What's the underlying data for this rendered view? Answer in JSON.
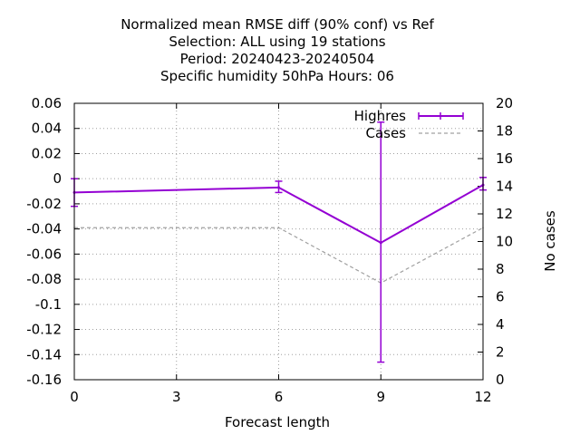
{
  "title": {
    "line1": "Normalized mean RMSE diff (90% conf) vs Ref",
    "line2": "Selection: ALL using    19 stations",
    "line3": "Period: 20240423-20240504",
    "line4": "Specific humidity 50hPa   Hours:  06"
  },
  "chart_data": {
    "type": "line",
    "xlabel": "Forecast length",
    "ylabel": "",
    "y2label": "No cases",
    "xlim": [
      0,
      12
    ],
    "ylim": [
      -0.16,
      0.06
    ],
    "y2lim": [
      0,
      20
    ],
    "xticks": [
      "0",
      "3",
      "6",
      "9",
      "12"
    ],
    "xtick_values": [
      0,
      3,
      6,
      9,
      12
    ],
    "yticks": [
      "0.06",
      "0.04",
      "0.02",
      "0",
      "-0.02",
      "-0.04",
      "-0.06",
      "-0.08",
      "-0.1",
      "-0.12",
      "-0.14",
      "-0.16"
    ],
    "ytick_values": [
      0.06,
      0.04,
      0.02,
      0,
      -0.02,
      -0.04,
      -0.06,
      -0.08,
      -0.1,
      -0.12,
      -0.14,
      -0.16
    ],
    "y2ticks": [
      "20",
      "18",
      "16",
      "14",
      "12",
      "10",
      "8",
      "6",
      "4",
      "2",
      "0"
    ],
    "y2tick_values": [
      20,
      18,
      16,
      14,
      12,
      10,
      8,
      6,
      4,
      2,
      0
    ],
    "grid": true,
    "legend_position": "top-right",
    "series": [
      {
        "name": "Highres",
        "axis": "y",
        "color": "#9400d3",
        "style": "solid-errorbars",
        "x": [
          0,
          6,
          9,
          12
        ],
        "y": [
          -0.011,
          -0.007,
          -0.051,
          -0.005
        ],
        "err_low": [
          -0.022,
          -0.011,
          -0.146,
          -0.009
        ],
        "err_high": [
          0.0,
          -0.002,
          0.045,
          0.001
        ]
      },
      {
        "name": "Cases",
        "axis": "y2",
        "color": "#a0a0a0",
        "style": "dashed",
        "x": [
          0,
          6,
          9,
          12
        ],
        "y": [
          11,
          11,
          7,
          11
        ]
      }
    ]
  }
}
